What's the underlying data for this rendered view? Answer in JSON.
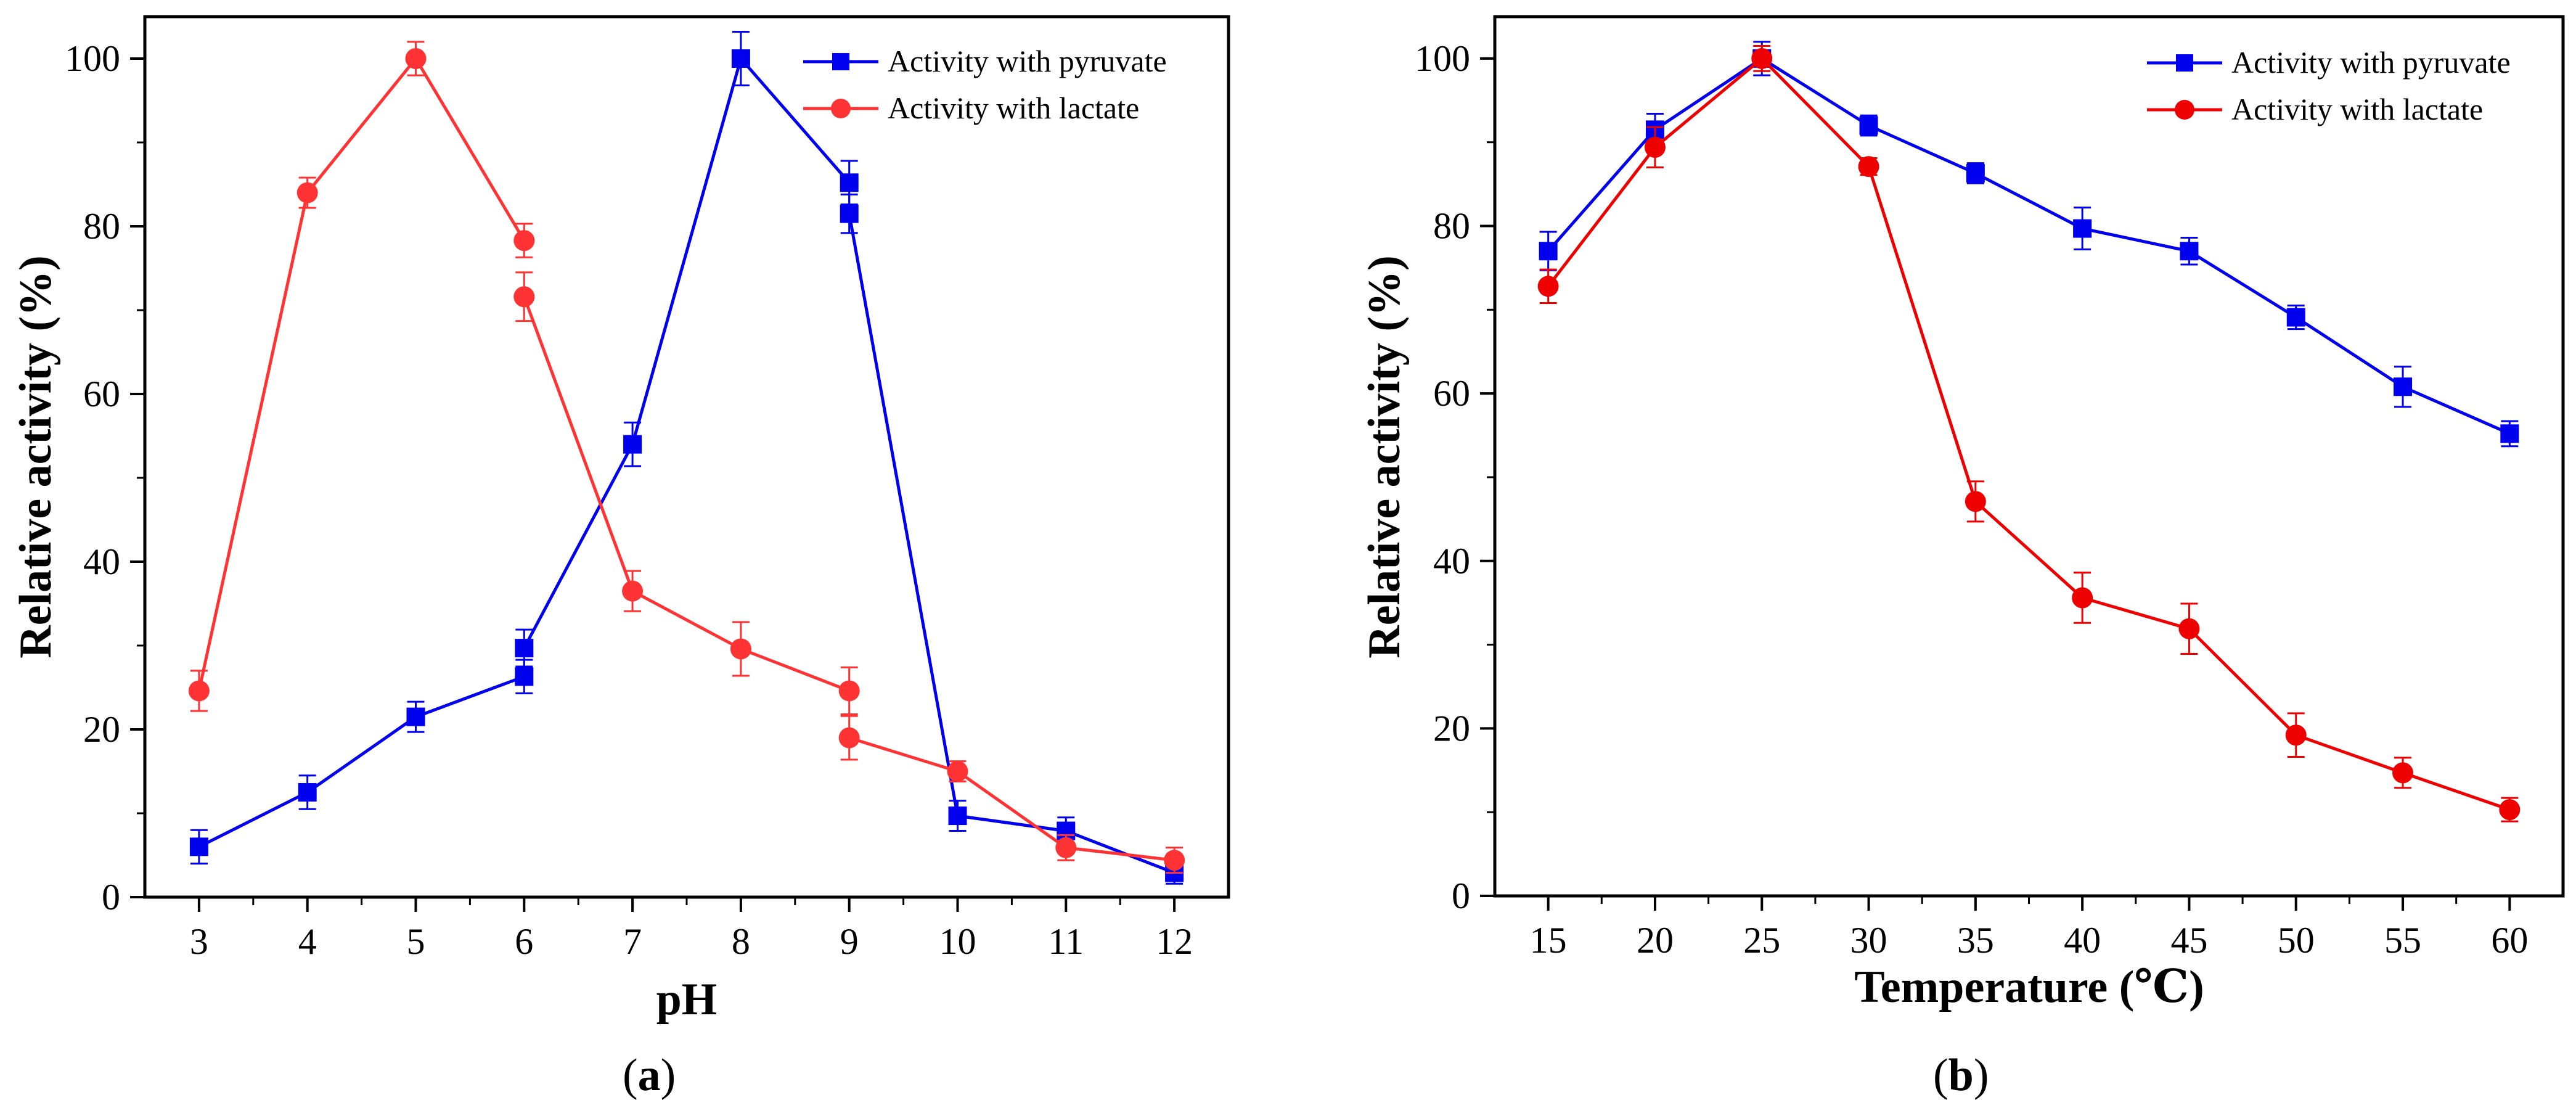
{
  "chart_data": [
    {
      "type": "line",
      "panel_label": "a",
      "xlabel": "pH",
      "ylabel": "Relative activity (%)",
      "xlim": [
        2.5,
        12.5
      ],
      "ylim": [
        0,
        105
      ],
      "xticks": [
        3,
        4,
        5,
        6,
        7,
        8,
        9,
        10,
        11,
        12
      ],
      "yticks": [
        0,
        20,
        40,
        60,
        80,
        100
      ],
      "legend_position": "top-right",
      "series": [
        {
          "name": "Activity with pyruvate",
          "color": "#0000ee",
          "marker": "square",
          "segments": [
            [
              {
                "x": 3,
                "y": 6,
                "err": 2
              },
              {
                "x": 4,
                "y": 12.5,
                "err": 2
              },
              {
                "x": 5,
                "y": 21.5,
                "err": 1.8
              },
              {
                "x": 6,
                "y": 26.3,
                "err": 2
              }
            ],
            [
              {
                "x": 6,
                "y": 29.7,
                "err": 2.2
              },
              {
                "x": 7,
                "y": 54,
                "err": 2.6
              },
              {
                "x": 8,
                "y": 100,
                "err": 3.2
              },
              {
                "x": 9,
                "y": 85.2,
                "err": 2.6
              }
            ],
            [
              {
                "x": 9,
                "y": 81.5,
                "err": 2.3
              },
              {
                "x": 10,
                "y": 9.7,
                "err": 1.8
              },
              {
                "x": 11,
                "y": 7.9,
                "err": 1.6
              },
              {
                "x": 12,
                "y": 2.9,
                "err": 1.3
              }
            ]
          ]
        },
        {
          "name": "Activity with lactate",
          "color": "#ff3333",
          "marker": "circle",
          "segments": [
            [
              {
                "x": 3,
                "y": 24.6,
                "err": 2.4
              },
              {
                "x": 4,
                "y": 84,
                "err": 1.8
              },
              {
                "x": 5,
                "y": 100,
                "err": 2
              },
              {
                "x": 6,
                "y": 78.3,
                "err": 2
              }
            ],
            [
              {
                "x": 6,
                "y": 71.6,
                "err": 2.9
              },
              {
                "x": 7,
                "y": 36.5,
                "err": 2.4
              },
              {
                "x": 8,
                "y": 29.6,
                "err": 3.2
              },
              {
                "x": 9,
                "y": 24.6,
                "err": 2.8
              }
            ],
            [
              {
                "x": 9,
                "y": 19,
                "err": 2.6
              },
              {
                "x": 10,
                "y": 15,
                "err": 1.2
              },
              {
                "x": 11,
                "y": 5.9,
                "err": 1.5
              },
              {
                "x": 12,
                "y": 4.4,
                "err": 1.5
              }
            ]
          ]
        }
      ]
    },
    {
      "type": "line",
      "panel_label": "b",
      "xlabel": "Temperature (℃)",
      "ylabel": "Relative activity (%)",
      "xlim": [
        12.5,
        62.5
      ],
      "ylim": [
        0,
        105
      ],
      "xticks": [
        15,
        20,
        25,
        30,
        35,
        40,
        45,
        50,
        55,
        60
      ],
      "yticks": [
        0,
        20,
        40,
        60,
        80,
        100
      ],
      "legend_position": "top-right",
      "series": [
        {
          "name": "Activity with pyruvate",
          "color": "#0000ee",
          "marker": "square",
          "segments": [
            [
              {
                "x": 15,
                "y": 77,
                "err": 2.3
              },
              {
                "x": 20,
                "y": 91.5,
                "err": 1.9
              },
              {
                "x": 25,
                "y": 100,
                "err": 2
              },
              {
                "x": 30,
                "y": 92,
                "err": 1.2
              },
              {
                "x": 35,
                "y": 86.3,
                "err": 1.2
              },
              {
                "x": 40,
                "y": 79.7,
                "err": 2.5
              },
              {
                "x": 45,
                "y": 77,
                "err": 1.6
              },
              {
                "x": 50,
                "y": 69.1,
                "err": 1.4
              },
              {
                "x": 55,
                "y": 60.8,
                "err": 2.4
              },
              {
                "x": 60,
                "y": 55.2,
                "err": 1.5
              }
            ]
          ]
        },
        {
          "name": "Activity with lactate",
          "color": "#ee0000",
          "marker": "circle",
          "segments": [
            [
              {
                "x": 15,
                "y": 72.8,
                "err": 2
              },
              {
                "x": 20,
                "y": 89.4,
                "err": 2.4
              },
              {
                "x": 25,
                "y": 100,
                "err": 1.5
              },
              {
                "x": 30,
                "y": 87.1,
                "err": 1
              },
              {
                "x": 35,
                "y": 47.1,
                "err": 2.4
              },
              {
                "x": 40,
                "y": 35.6,
                "err": 3
              },
              {
                "x": 45,
                "y": 31.9,
                "err": 3
              },
              {
                "x": 50,
                "y": 19.2,
                "err": 2.6
              },
              {
                "x": 55,
                "y": 14.7,
                "err": 1.8
              },
              {
                "x": 60,
                "y": 10.3,
                "err": 1.4
              }
            ]
          ]
        }
      ]
    }
  ]
}
